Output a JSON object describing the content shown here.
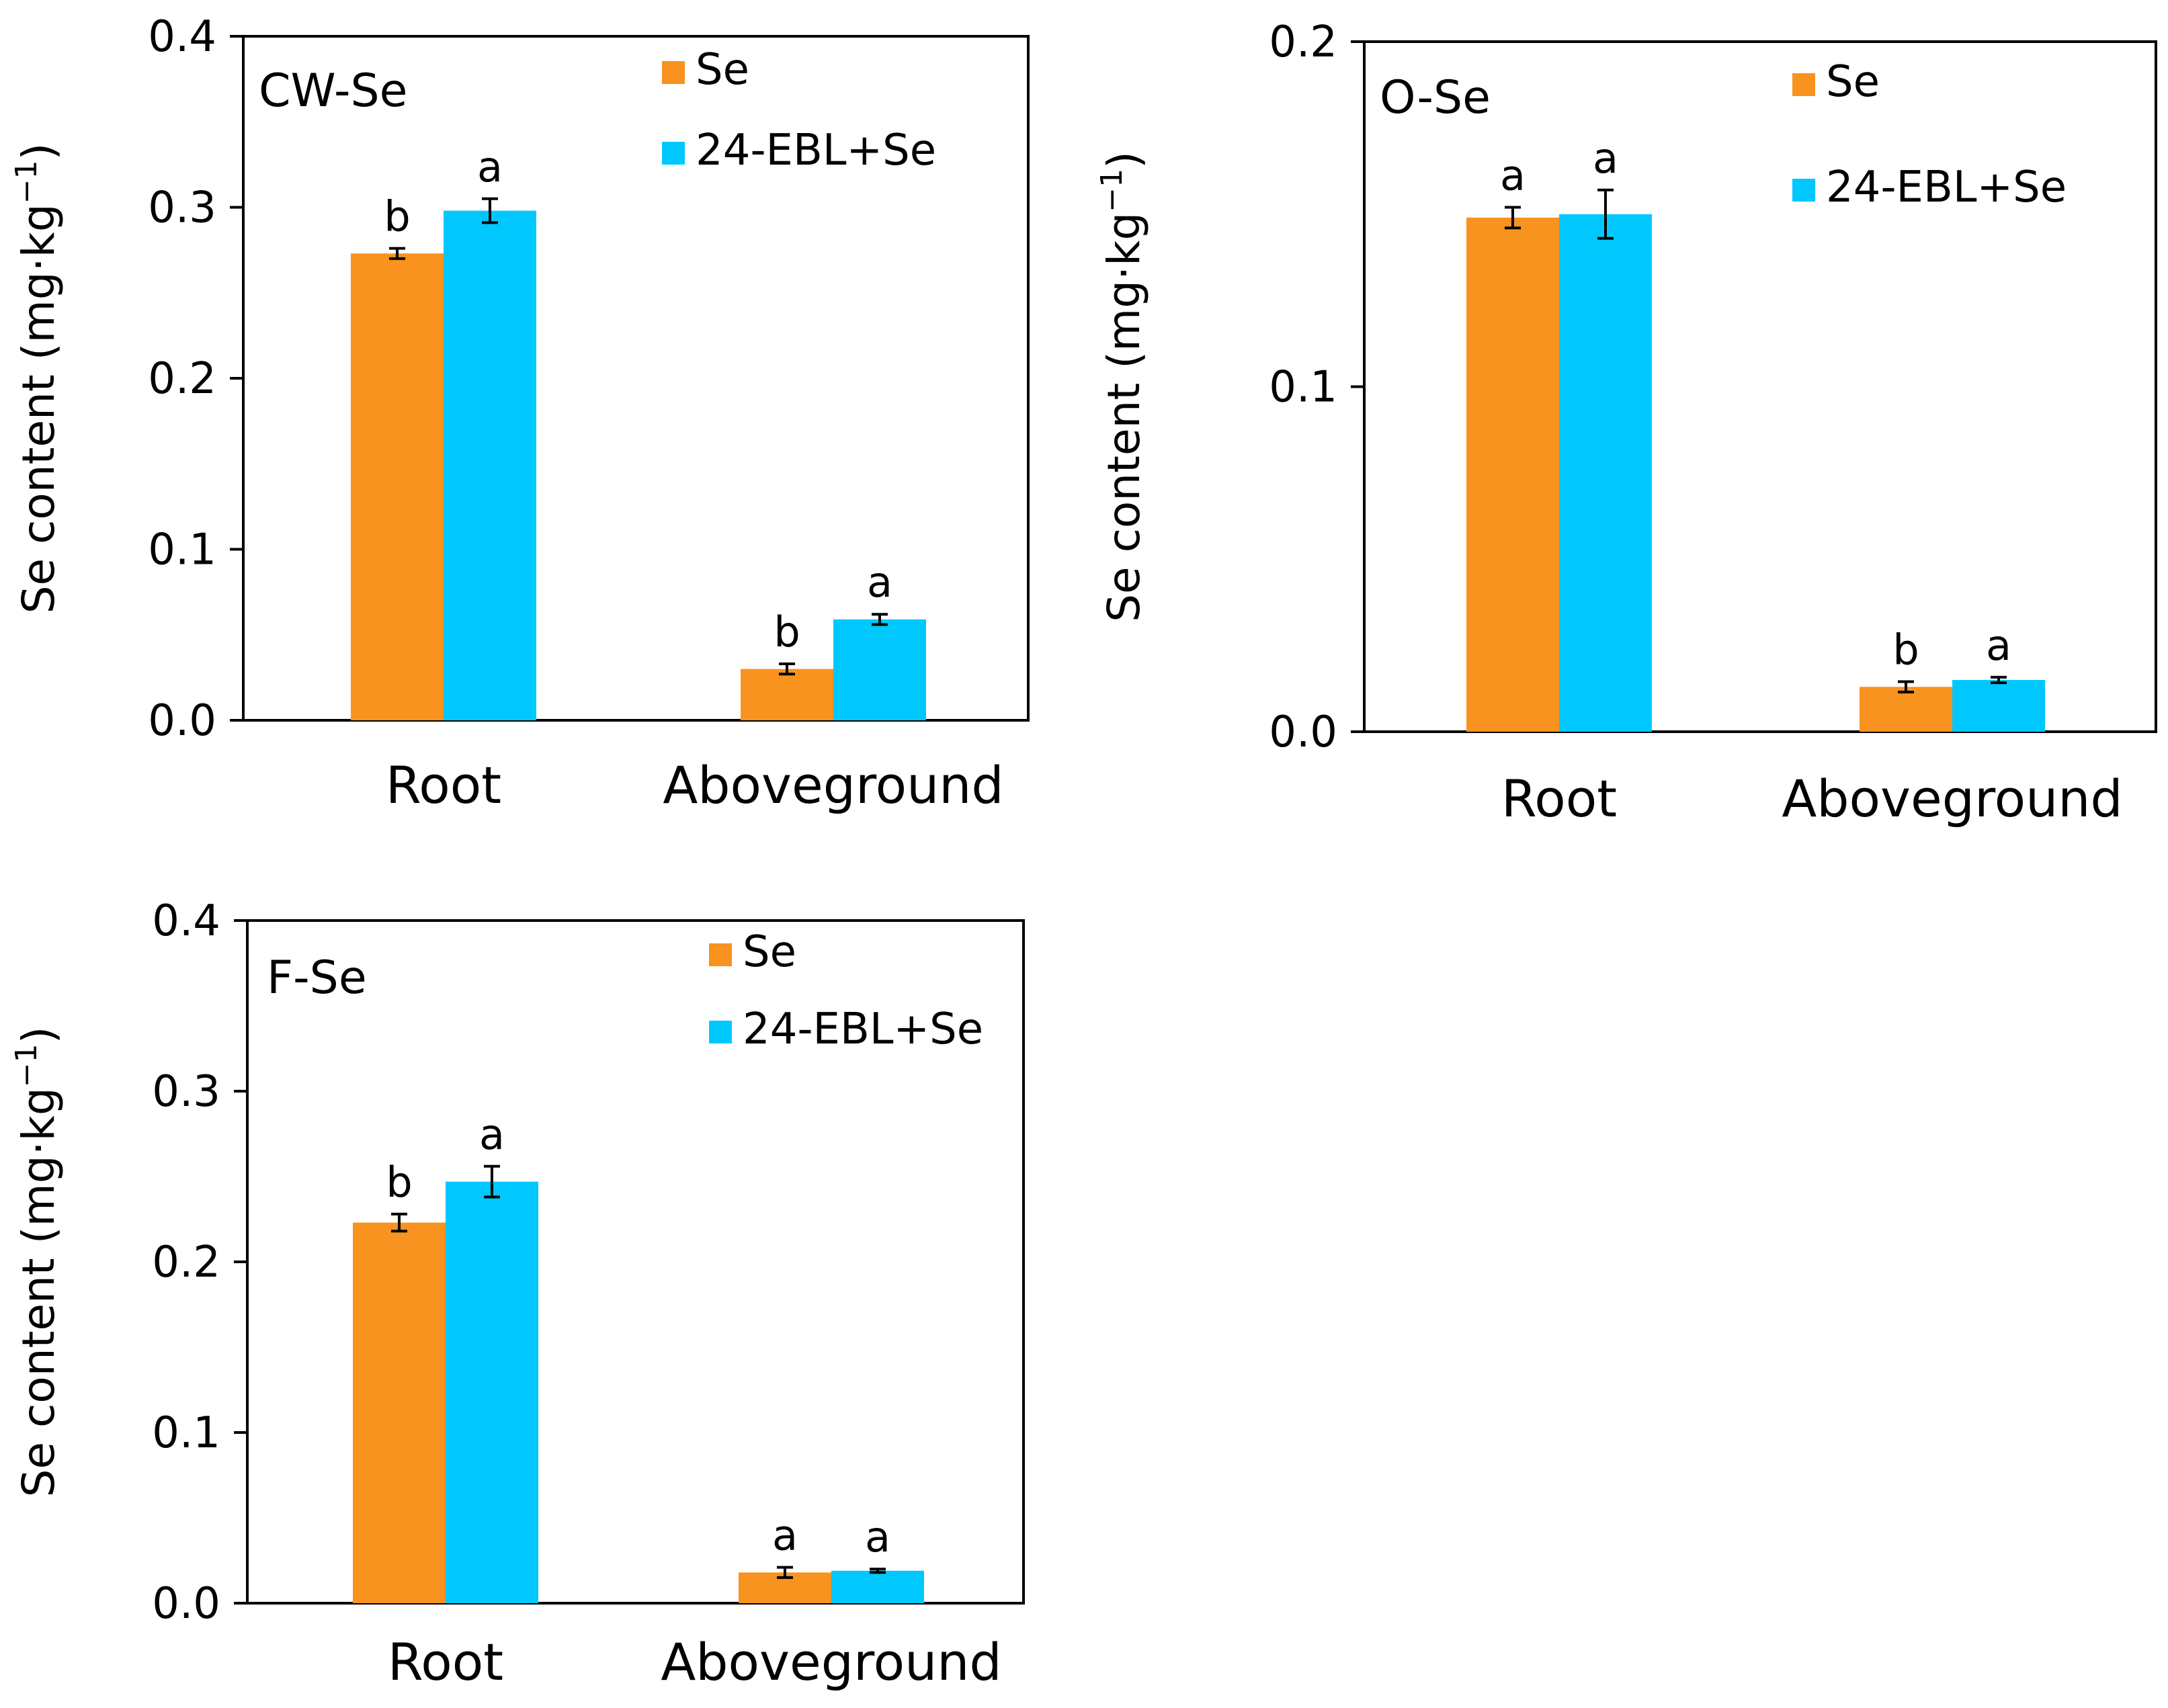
{
  "colors": {
    "se": "#f7931e",
    "ebl_se": "#00c8ff"
  },
  "chart_data": [
    {
      "type": "bar",
      "panel_label": "CW-Se",
      "categories": [
        "Root",
        "Aboveground"
      ],
      "ylabel": {
        "main": "Se content (mg·kg",
        "sup": "−1",
        "close": ")"
      },
      "ylim": [
        0,
        0.4
      ],
      "yticks": [
        "0.0",
        "0.1",
        "0.2",
        "0.3",
        "0.4"
      ],
      "grid": false,
      "legend": "top-right",
      "series": [
        {
          "name": "Se",
          "color_key": "se",
          "values": [
            0.273,
            0.03
          ],
          "errors": [
            0.003,
            0.003
          ],
          "letters": [
            "b",
            "b"
          ]
        },
        {
          "name": "24-EBL+Se",
          "color_key": "ebl_se",
          "values": [
            0.298,
            0.059
          ],
          "errors": [
            0.007,
            0.003
          ],
          "letters": [
            "a",
            "a"
          ]
        }
      ]
    },
    {
      "type": "bar",
      "panel_label": "O-Se",
      "categories": [
        "Root",
        "Aboveground"
      ],
      "ylabel": {
        "main": "Se content (mg·kg",
        "sup": "−1",
        "close": ")"
      },
      "ylim": [
        0,
        0.2
      ],
      "yticks": [
        "0.0",
        "0.1",
        "0.2"
      ],
      "grid": false,
      "legend": "top-right",
      "series": [
        {
          "name": "Se",
          "color_key": "se",
          "values": [
            0.149,
            0.013
          ],
          "errors": [
            0.003,
            0.0015
          ],
          "letters": [
            "a",
            "b"
          ]
        },
        {
          "name": "24-EBL+Se",
          "color_key": "ebl_se",
          "values": [
            0.15,
            0.015
          ],
          "errors": [
            0.007,
            0.0008
          ],
          "letters": [
            "a",
            "a"
          ]
        }
      ]
    },
    {
      "type": "bar",
      "panel_label": "F-Se",
      "categories": [
        "Root",
        "Aboveground"
      ],
      "ylabel": {
        "main": "Se content (mg·kg",
        "sup": "−1",
        "close": ")"
      },
      "ylim": [
        0,
        0.4
      ],
      "yticks": [
        "0.0",
        "0.1",
        "0.2",
        "0.3",
        "0.4"
      ],
      "grid": false,
      "legend": "top-right",
      "series": [
        {
          "name": "Se",
          "color_key": "se",
          "values": [
            0.223,
            0.018
          ],
          "errors": [
            0.005,
            0.003
          ],
          "letters": [
            "b",
            "a"
          ]
        },
        {
          "name": "24-EBL+Se",
          "color_key": "ebl_se",
          "values": [
            0.247,
            0.019
          ],
          "errors": [
            0.009,
            0.001
          ],
          "letters": [
            "a",
            "a"
          ]
        }
      ]
    }
  ]
}
